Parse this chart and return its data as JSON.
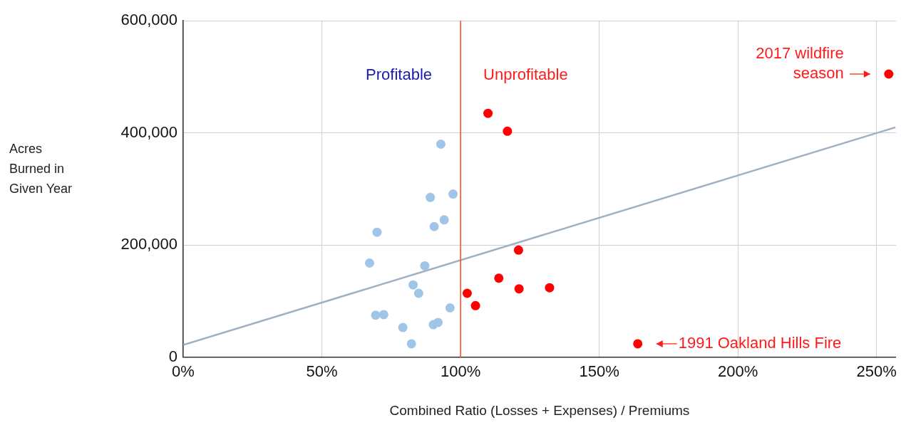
{
  "chart_data": {
    "type": "scatter",
    "xlabel": "Combined Ratio (Losses + Expenses) / Premiums",
    "ylabel": "Acres Burned in Given Year",
    "xlim": [
      0,
      257
    ],
    "xticks": [
      {
        "value": 0,
        "label": "0%"
      },
      {
        "value": 50,
        "label": "50%"
      },
      {
        "value": 100,
        "label": "100%"
      },
      {
        "value": 150,
        "label": "150%"
      },
      {
        "value": 200,
        "label": "200%"
      },
      {
        "value": 250,
        "label": "250%"
      }
    ],
    "ylim": [
      0,
      600000
    ],
    "yticks": [
      {
        "value": 0,
        "label": "0"
      },
      {
        "value": 200000,
        "label": "200,000"
      },
      {
        "value": 400000,
        "label": "400,000"
      },
      {
        "value": 600000,
        "label": "600,000"
      }
    ],
    "grid": true,
    "legend": false,
    "marker": "circle",
    "series": [
      {
        "color": "#9fc5e8",
        "x": [
          92.9,
          89.1,
          97.3,
          94.1,
          90.5,
          69.9,
          67.2,
          87.1,
          82.9,
          84.9,
          96.2,
          69.4,
          72.3,
          90.2,
          91.9,
          79.2,
          82.3
        ],
        "values": [
          380000,
          285000,
          291000,
          245000,
          233000,
          223000,
          168000,
          163000,
          129000,
          114000,
          88000,
          75000,
          76000,
          58000,
          62000,
          53000,
          24000
        ]
      },
      {
        "color": "#ff0000",
        "x": [
          109.9,
          116.9,
          120.9,
          113.8,
          121.1,
          132.1,
          102.4,
          105.4,
          254.4,
          163.9
        ],
        "values": [
          435000,
          403000,
          191000,
          141000,
          122000,
          124000,
          114000,
          92000,
          505000,
          24000
        ]
      },
      {
        "type": "line",
        "color": "#9fb0c4",
        "marker": "none",
        "x": [
          0,
          256.8
        ],
        "values": [
          22000,
          410000
        ]
      }
    ],
    "ref_lines": [
      {
        "axis": "x",
        "value": 100,
        "color": "#ff4b1f"
      }
    ],
    "annotations": [
      "Profitable",
      "Unprofitable",
      {
        "text": "2017 wildfire season",
        "x": 254.4,
        "y": 505000
      },
      {
        "text": "1991 Oakland Hills Fire",
        "x": 163.9,
        "y": 24000
      }
    ]
  }
}
